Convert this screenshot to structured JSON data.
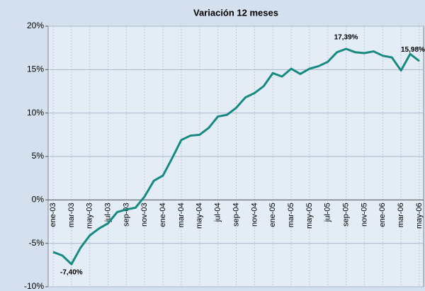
{
  "chart_data": {
    "type": "line",
    "title": "Variación 12 meses",
    "categories": [
      "ene-03",
      null,
      "mar-03",
      null,
      "may-03",
      null,
      "jul-03",
      null,
      "sep-03",
      null,
      "nov-03",
      null,
      "ene-04",
      null,
      "mar-04",
      null,
      "may-04",
      null,
      "jul-04",
      null,
      "sep-04",
      null,
      "nov-04",
      null,
      "ene-05",
      null,
      "mar-05",
      null,
      "may-05",
      null,
      "jul-05",
      null,
      "sep-05",
      null,
      "nov-05",
      null,
      "ene-06",
      null,
      "mar-06",
      null,
      "may-06"
    ],
    "series": [
      {
        "name": "Variación 12 meses",
        "color": "#178a80",
        "values": [
          -6.0,
          -6.4,
          -7.4,
          -5.5,
          -4.1,
          -3.3,
          -2.7,
          -1.4,
          -1.1,
          -0.9,
          0.4,
          2.2,
          2.8,
          4.8,
          6.9,
          7.4,
          7.5,
          8.3,
          9.6,
          9.8,
          10.6,
          11.8,
          12.3,
          13.1,
          14.6,
          14.2,
          15.1,
          14.5,
          15.1,
          15.4,
          15.9,
          17.0,
          17.39,
          17.0,
          16.9,
          17.1,
          16.6,
          16.4,
          14.9,
          16.8,
          15.98
        ],
        "value_labels": [
          null,
          null,
          "-7,40%",
          null,
          null,
          null,
          null,
          null,
          null,
          null,
          null,
          null,
          null,
          null,
          null,
          null,
          null,
          null,
          null,
          null,
          null,
          null,
          null,
          null,
          null,
          null,
          null,
          null,
          null,
          null,
          null,
          null,
          "17,39%",
          null,
          null,
          null,
          null,
          null,
          null,
          null,
          "15,98%"
        ]
      }
    ],
    "ylim": [
      -10,
      20
    ],
    "yticks": [
      {
        "value": -10,
        "label": "-10%"
      },
      {
        "value": -5,
        "label": "-5%"
      },
      {
        "value": 0,
        "label": "0%"
      },
      {
        "value": 5,
        "label": "5%"
      },
      {
        "value": 10,
        "label": "10%"
      },
      {
        "value": 15,
        "label": "15%"
      },
      {
        "value": 20,
        "label": "20%"
      }
    ],
    "grid": true
  }
}
